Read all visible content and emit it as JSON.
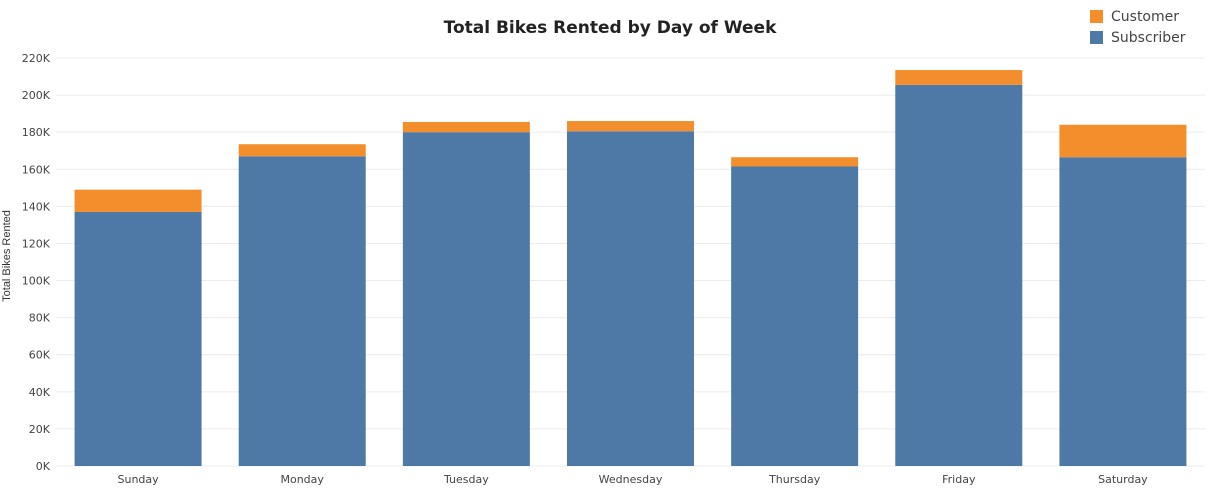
{
  "chart_data": {
    "type": "bar",
    "stacked": true,
    "title": "Total Bikes Rented by Day of Week",
    "xlabel": "",
    "ylabel": "Total Bikes Rented",
    "ylim": [
      0,
      220000
    ],
    "yticks": [
      "0K",
      "20K",
      "40K",
      "60K",
      "80K",
      "100K",
      "120K",
      "140K",
      "160K",
      "180K",
      "200K",
      "220K"
    ],
    "categories": [
      "Sunday",
      "Monday",
      "Tuesday",
      "Wednesday",
      "Thursday",
      "Friday",
      "Saturday"
    ],
    "series": [
      {
        "name": "Subscriber",
        "color": "#4e79a7",
        "values": [
          137000,
          167000,
          180000,
          180500,
          161500,
          205500,
          166500
        ]
      },
      {
        "name": "Customer",
        "color": "#f28e2b",
        "values": [
          12000,
          6500,
          5500,
          5500,
          5000,
          8000,
          17500
        ]
      }
    ],
    "legend": {
      "position": "top-right",
      "entries": [
        {
          "name": "Customer",
          "color": "#f28e2b"
        },
        {
          "name": "Subscriber",
          "color": "#4e79a7"
        }
      ]
    },
    "grid": true
  }
}
